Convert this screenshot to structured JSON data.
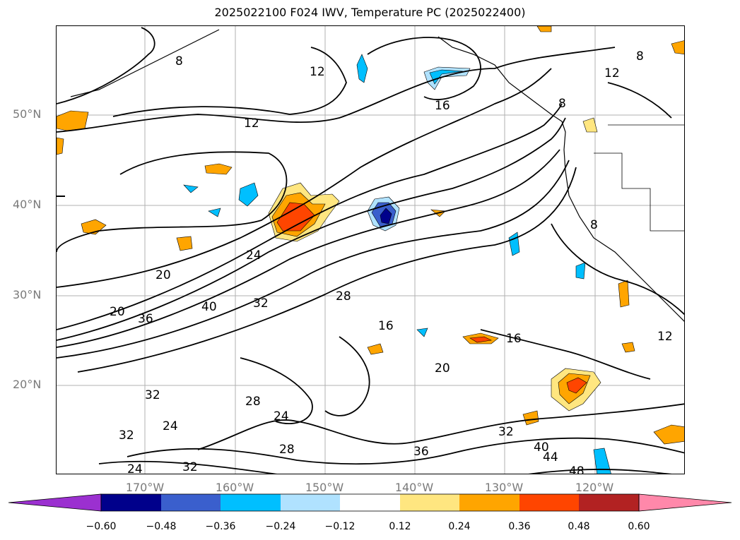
{
  "title": "2025022100 F024 IWV, Temperature PC (2025022400)",
  "lat_labels": [
    "50°N",
    "40°N",
    "30°N",
    "20°N"
  ],
  "lon_labels": [
    "170°W",
    "160°W",
    "150°W",
    "140°W",
    "130°W",
    "120°W"
  ],
  "colorbar": {
    "ticks": [
      "−0.60",
      "−0.48",
      "−0.36",
      "−0.24",
      "−0.12",
      "0.12",
      "0.24",
      "0.36",
      "0.48",
      "0.60"
    ],
    "colors": [
      "#9b30d0",
      "#00008b",
      "#3a5fcd",
      "#00bfff",
      "#b0e2ff",
      "#ffffff",
      "#ffe680",
      "#ffa500",
      "#ff4500",
      "#b22222",
      "#ff88aa"
    ]
  },
  "contour_labels": [
    "8",
    "12",
    "16",
    "12",
    "8",
    "8",
    "12",
    "24",
    "20",
    "20",
    "36",
    "40",
    "32",
    "28",
    "16",
    "16",
    "20",
    "32",
    "24",
    "28",
    "24",
    "32",
    "28",
    "24",
    "32",
    "36",
    "32",
    "40",
    "44",
    "48",
    "8",
    "12"
  ],
  "colors": {
    "contour": "#000000",
    "grid": "#b0b0b0",
    "axis_label": "#7a7a7a"
  }
}
